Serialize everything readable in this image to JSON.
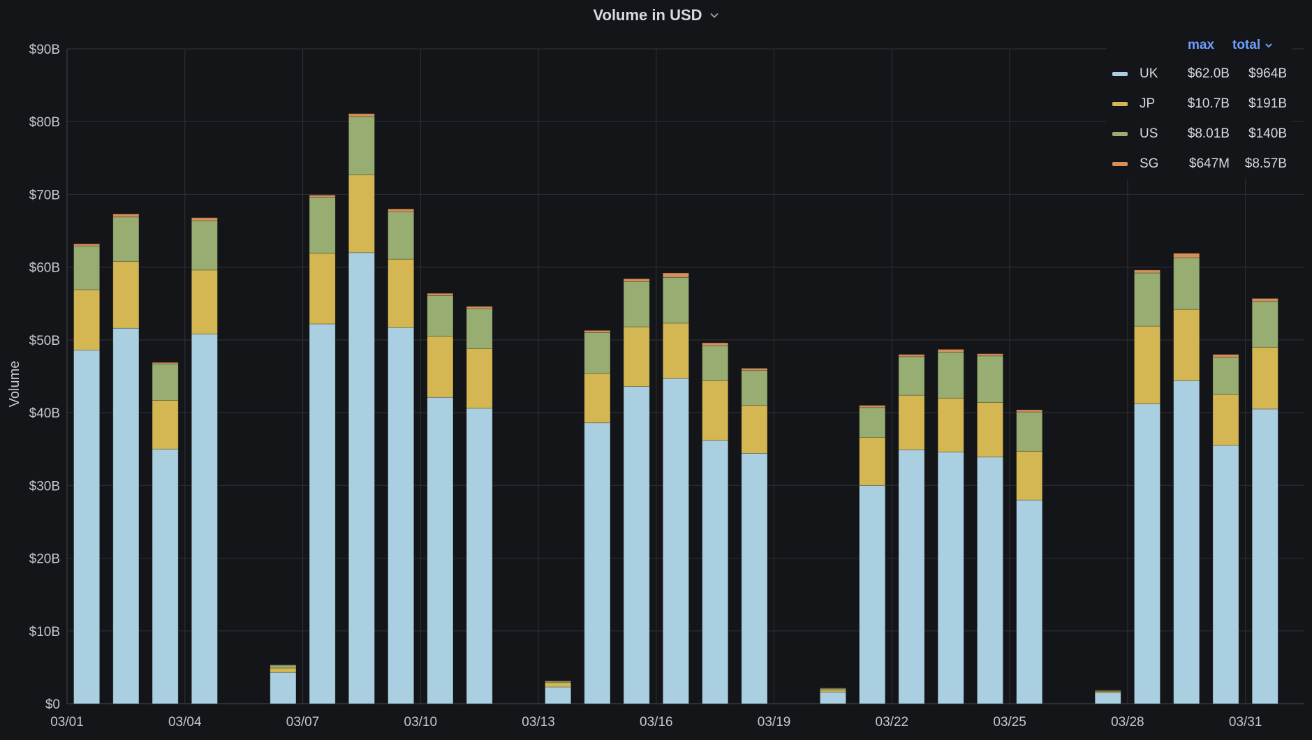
{
  "panel": {
    "title": "Volume in USD",
    "chevron_icon": "chevron-down-icon"
  },
  "legend": {
    "columns": [
      {
        "label": "max",
        "sorted": false
      },
      {
        "label": "total",
        "sorted": true,
        "icon": "chevron-down-icon"
      }
    ],
    "items": [
      {
        "name": "UK",
        "max": "$62.0B",
        "total": "$964B",
        "color": "#a9cfe0"
      },
      {
        "name": "JP",
        "max": "$10.7B",
        "total": "$191B",
        "color": "#d4b753"
      },
      {
        "name": "US",
        "max": "$8.01B",
        "total": "$140B",
        "color": "#98ad72"
      },
      {
        "name": "SG",
        "max": "$647M",
        "total": "$8.57B",
        "color": "#d58f59"
      }
    ]
  },
  "chart_data": {
    "type": "bar",
    "stacked": true,
    "title": "Volume in USD",
    "xlabel": "",
    "ylabel": "Volume",
    "ylim": [
      0,
      90
    ],
    "y_unit": "billions USD",
    "y_ticks": [
      "$0",
      "$10B",
      "$20B",
      "$30B",
      "$40B",
      "$50B",
      "$60B",
      "$70B",
      "$80B",
      "$90B"
    ],
    "x_tick_labels": [
      "03/01",
      "03/04",
      "03/07",
      "03/10",
      "03/13",
      "03/16",
      "03/19",
      "03/22",
      "03/25",
      "03/28",
      "03/31"
    ],
    "grid": true,
    "legend_position": "top-right",
    "categories": [
      "03/01",
      "03/02",
      "03/03",
      "03/04",
      "03/05",
      "03/06",
      "03/07",
      "03/08",
      "03/09",
      "03/10",
      "03/11",
      "03/12",
      "03/13",
      "03/14",
      "03/15",
      "03/16",
      "03/17",
      "03/18",
      "03/19",
      "03/20",
      "03/21",
      "03/22",
      "03/23",
      "03/24",
      "03/25",
      "03/26",
      "03/27",
      "03/28",
      "03/29",
      "03/30",
      "03/31"
    ],
    "series": [
      {
        "name": "UK",
        "color": "#a9cfe0",
        "values": [
          48.6,
          51.6,
          35.0,
          50.8,
          0,
          4.3,
          52.2,
          62.0,
          51.7,
          42.1,
          40.6,
          0,
          2.3,
          38.6,
          43.6,
          44.7,
          36.2,
          34.4,
          0,
          1.6,
          30.0,
          34.9,
          34.6,
          33.9,
          28.0,
          0,
          1.5,
          41.2,
          44.4,
          35.5,
          40.5
        ]
      },
      {
        "name": "JP",
        "color": "#d4b753",
        "values": [
          8.3,
          9.2,
          6.7,
          8.8,
          0,
          0.6,
          9.7,
          10.7,
          9.4,
          8.4,
          8.2,
          0,
          0.6,
          6.8,
          8.2,
          7.6,
          8.2,
          6.6,
          0,
          0.3,
          6.6,
          7.5,
          7.4,
          7.5,
          6.7,
          0,
          0.2,
          10.7,
          9.8,
          7.0,
          8.5
        ]
      },
      {
        "name": "US",
        "color": "#98ad72",
        "values": [
          6.0,
          6.1,
          5.0,
          6.8,
          0,
          0.4,
          7.7,
          8.0,
          6.5,
          5.6,
          5.5,
          0,
          0.2,
          5.6,
          6.2,
          6.3,
          4.8,
          4.8,
          0,
          0.2,
          4.1,
          5.3,
          6.3,
          6.4,
          5.4,
          0,
          0.1,
          7.3,
          7.1,
          5.1,
          6.3
        ]
      },
      {
        "name": "SG",
        "color": "#d58f59",
        "values": [
          0.3,
          0.4,
          0.2,
          0.4,
          0,
          0.05,
          0.3,
          0.4,
          0.4,
          0.3,
          0.3,
          0,
          0.05,
          0.3,
          0.4,
          0.6,
          0.4,
          0.3,
          0,
          0.05,
          0.3,
          0.3,
          0.4,
          0.3,
          0.3,
          0,
          0.05,
          0.4,
          0.6,
          0.4,
          0.4
        ]
      }
    ]
  }
}
